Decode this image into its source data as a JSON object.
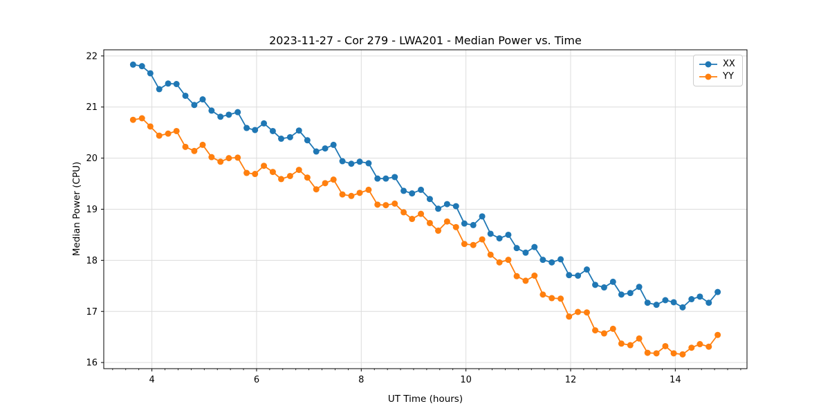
{
  "chart_data": {
    "type": "line",
    "title": "2023-11-27 - Cor 279 - LWA201 - Median Power vs. Time",
    "xlabel": "UT Time (hours)",
    "ylabel": "Median Power (CPU)",
    "xlim": [
      3.08,
      15.37
    ],
    "ylim": [
      15.88,
      22.12
    ],
    "xticks": [
      4,
      6,
      8,
      10,
      12,
      14
    ],
    "yticks": [
      16,
      17,
      18,
      19,
      20,
      21,
      22
    ],
    "minor_xtick_step": 0.25,
    "grid": true,
    "grid_color": "#dcdcdc",
    "spine_color": "#000000",
    "legend_position": "upper right",
    "x": [
      3.64,
      3.81,
      3.97,
      4.14,
      4.31,
      4.47,
      4.64,
      4.81,
      4.97,
      5.14,
      5.31,
      5.47,
      5.64,
      5.81,
      5.97,
      6.14,
      6.31,
      6.47,
      6.64,
      6.81,
      6.97,
      7.14,
      7.31,
      7.47,
      7.64,
      7.81,
      7.97,
      8.14,
      8.31,
      8.47,
      8.64,
      8.81,
      8.97,
      9.14,
      9.31,
      9.47,
      9.64,
      9.81,
      9.97,
      10.14,
      10.31,
      10.47,
      10.64,
      10.81,
      10.97,
      11.14,
      11.31,
      11.47,
      11.64,
      11.81,
      11.97,
      12.14,
      12.31,
      12.47,
      12.64,
      12.81,
      12.97,
      13.14,
      13.31,
      13.47,
      13.64,
      13.81,
      13.97,
      14.14,
      14.31,
      14.47,
      14.64,
      14.81
    ],
    "series": [
      {
        "name": "XX",
        "color": "#1f77b4",
        "values": [
          21.83,
          21.8,
          21.66,
          21.35,
          21.46,
          21.45,
          21.22,
          21.04,
          21.15,
          20.93,
          20.81,
          20.85,
          20.9,
          20.59,
          20.55,
          20.68,
          20.53,
          20.38,
          20.41,
          20.54,
          20.35,
          20.13,
          20.19,
          20.26,
          19.94,
          19.89,
          19.93,
          19.9,
          19.6,
          19.6,
          19.63,
          19.36,
          19.31,
          19.38,
          19.2,
          19.01,
          19.1,
          19.06,
          18.72,
          18.69,
          18.86,
          18.52,
          18.43,
          18.5,
          18.24,
          18.15,
          18.26,
          18.01,
          17.96,
          18.02,
          17.71,
          17.7,
          17.82,
          17.52,
          17.47,
          17.58,
          17.33,
          17.36,
          17.48,
          17.17,
          17.13,
          17.22,
          17.18,
          17.08,
          17.24,
          17.29,
          17.17,
          17.38
        ]
      },
      {
        "name": "YY",
        "color": "#ff7f0e",
        "values": [
          20.75,
          20.78,
          20.62,
          20.44,
          20.48,
          20.53,
          20.22,
          20.14,
          20.26,
          20.02,
          19.93,
          20.0,
          20.01,
          19.71,
          19.69,
          19.85,
          19.73,
          19.59,
          19.65,
          19.77,
          19.62,
          19.39,
          19.51,
          19.58,
          19.29,
          19.26,
          19.32,
          19.38,
          19.09,
          19.08,
          19.11,
          18.94,
          18.81,
          18.91,
          18.73,
          18.58,
          18.76,
          18.65,
          18.32,
          18.3,
          18.41,
          18.11,
          17.96,
          18.01,
          17.69,
          17.6,
          17.7,
          17.33,
          17.26,
          17.25,
          16.9,
          16.99,
          16.98,
          16.63,
          16.57,
          16.66,
          16.37,
          16.34,
          16.47,
          16.19,
          16.18,
          16.32,
          16.18,
          16.16,
          16.29,
          16.36,
          16.31,
          16.54
        ]
      }
    ]
  }
}
